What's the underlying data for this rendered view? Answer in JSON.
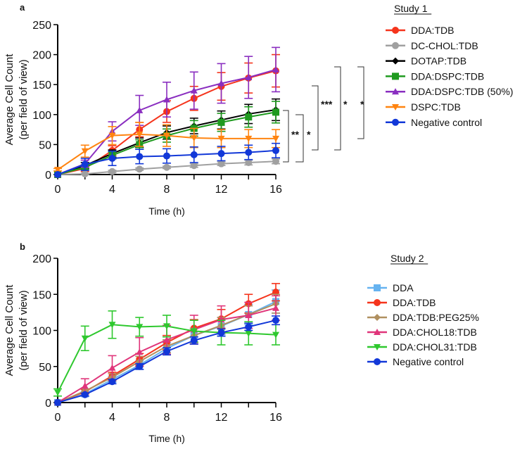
{
  "chart_data": [
    {
      "type": "line",
      "panel_label": "a",
      "legend_title": "Study 1",
      "xlabel": "Time (h)",
      "ylabel": "Average Cell Count",
      "ylabel2": "(per field of view)",
      "xlim": [
        0,
        16
      ],
      "ylim": [
        0,
        250
      ],
      "xticks": [
        0,
        4,
        8,
        12,
        16
      ],
      "yticks": [
        0,
        50,
        100,
        150,
        200,
        250
      ],
      "legend_placement": "right",
      "x": [
        0,
        2,
        4,
        6,
        8,
        10,
        12,
        14,
        16
      ],
      "series": [
        {
          "name": "DDA:TDB",
          "color": "#f5341c",
          "marker": "circle",
          "values": [
            0,
            10,
            40,
            75,
            105,
            127,
            147,
            161,
            173
          ],
          "errors": [
            0,
            5,
            8,
            12,
            18,
            20,
            23,
            25,
            27
          ]
        },
        {
          "name": "DC-CHOL:TDB",
          "color": "#a0a0a0",
          "marker": "circle",
          "values": [
            0,
            1,
            5,
            9,
            12,
            15,
            18,
            20,
            22
          ],
          "errors": [
            0,
            1,
            2,
            2,
            2,
            3,
            3,
            4,
            4
          ]
        },
        {
          "name": "DOTAP:TDB",
          "color": "#000000",
          "marker": "diamond",
          "values": [
            0,
            15,
            35,
            53,
            70,
            81,
            91,
            101,
            108
          ],
          "errors": [
            0,
            5,
            6,
            8,
            11,
            13,
            15,
            16,
            18
          ]
        },
        {
          "name": "DDA:DSPC:TDB",
          "color": "#1f9a1f",
          "marker": "square",
          "values": [
            0,
            12,
            32,
            50,
            65,
            77,
            87,
            96,
            104
          ],
          "errors": [
            0,
            4,
            6,
            8,
            11,
            13,
            15,
            17,
            18
          ]
        },
        {
          "name": "DDA:DSPC:TDB (50%)",
          "color": "#8a2ec0",
          "marker": "triangle-up",
          "values": [
            0,
            18,
            72,
            107,
            125,
            140,
            152,
            162,
            175
          ],
          "errors": [
            0,
            6,
            16,
            25,
            29,
            31,
            33,
            35,
            37
          ]
        },
        {
          "name": "DSPC:TDB",
          "color": "#ff8410",
          "marker": "triangle-down",
          "values": [
            8,
            39,
            65,
            67,
            65,
            61,
            60,
            60,
            60
          ],
          "errors": [
            2,
            10,
            15,
            20,
            18,
            16,
            15,
            15,
            15
          ]
        },
        {
          "name": "Negative control",
          "color": "#1238d8",
          "marker": "circle",
          "values": [
            0,
            17,
            27,
            30,
            31,
            33,
            35,
            37,
            40
          ],
          "errors": [
            0,
            10,
            12,
            12,
            12,
            13,
            12,
            12,
            12
          ]
        }
      ],
      "significance": [
        "**",
        "*",
        "***",
        "*",
        "*"
      ]
    },
    {
      "type": "line",
      "panel_label": "b",
      "legend_title": "Study 2",
      "xlabel": "Time (h)",
      "ylabel": "Average Cell Count",
      "ylabel2": "(per field of view)",
      "xlim": [
        0,
        16
      ],
      "ylim": [
        0,
        200
      ],
      "xticks": [
        0,
        4,
        8,
        12,
        16
      ],
      "yticks": [
        0,
        50,
        100,
        150,
        200
      ],
      "legend_placement": "right",
      "x": [
        0,
        2,
        4,
        6,
        8,
        10,
        12,
        14,
        16
      ],
      "series": [
        {
          "name": "DDA",
          "color": "#66b3f0",
          "marker": "square",
          "values": [
            0,
            12,
            32,
            52,
            75,
            93,
            106,
            122,
            140
          ],
          "errors": [
            0,
            3,
            4,
            6,
            8,
            10,
            12,
            14,
            16
          ]
        },
        {
          "name": "DDA:TDB",
          "color": "#f5341c",
          "marker": "circle",
          "values": [
            0,
            15,
            37,
            60,
            83,
            103,
            116,
            137,
            153
          ],
          "errors": [
            0,
            3,
            5,
            8,
            10,
            12,
            13,
            13,
            12
          ]
        },
        {
          "name": "DDA:TDB:PEG25%",
          "color": "#b09060",
          "marker": "diamond",
          "values": [
            0,
            16,
            35,
            57,
            78,
            93,
            107,
            122,
            137
          ],
          "errors": [
            0,
            3,
            5,
            7,
            9,
            10,
            11,
            12,
            13
          ]
        },
        {
          "name": "DDA:CHOL18:TDB",
          "color": "#e0357a",
          "marker": "triangle-up",
          "values": [
            0,
            23,
            48,
            70,
            87,
            101,
            115,
            121,
            131
          ],
          "errors": [
            0,
            10,
            17,
            20,
            20,
            20,
            19,
            18,
            17
          ]
        },
        {
          "name": "DDA:CHOL31:TDB",
          "color": "#2ec82e",
          "marker": "triangle-down",
          "values": [
            14,
            89,
            108,
            105,
            106,
            99,
            97,
            96,
            94
          ],
          "errors": [
            5,
            17,
            19,
            13,
            15,
            15,
            17,
            16,
            14
          ]
        },
        {
          "name": "Negative control",
          "color": "#1238d8",
          "marker": "circle",
          "values": [
            0,
            11,
            29,
            50,
            71,
            86,
            97,
            105,
            114
          ],
          "errors": [
            0,
            2,
            3,
            4,
            5,
            5,
            5,
            5,
            6
          ]
        }
      ]
    }
  ]
}
